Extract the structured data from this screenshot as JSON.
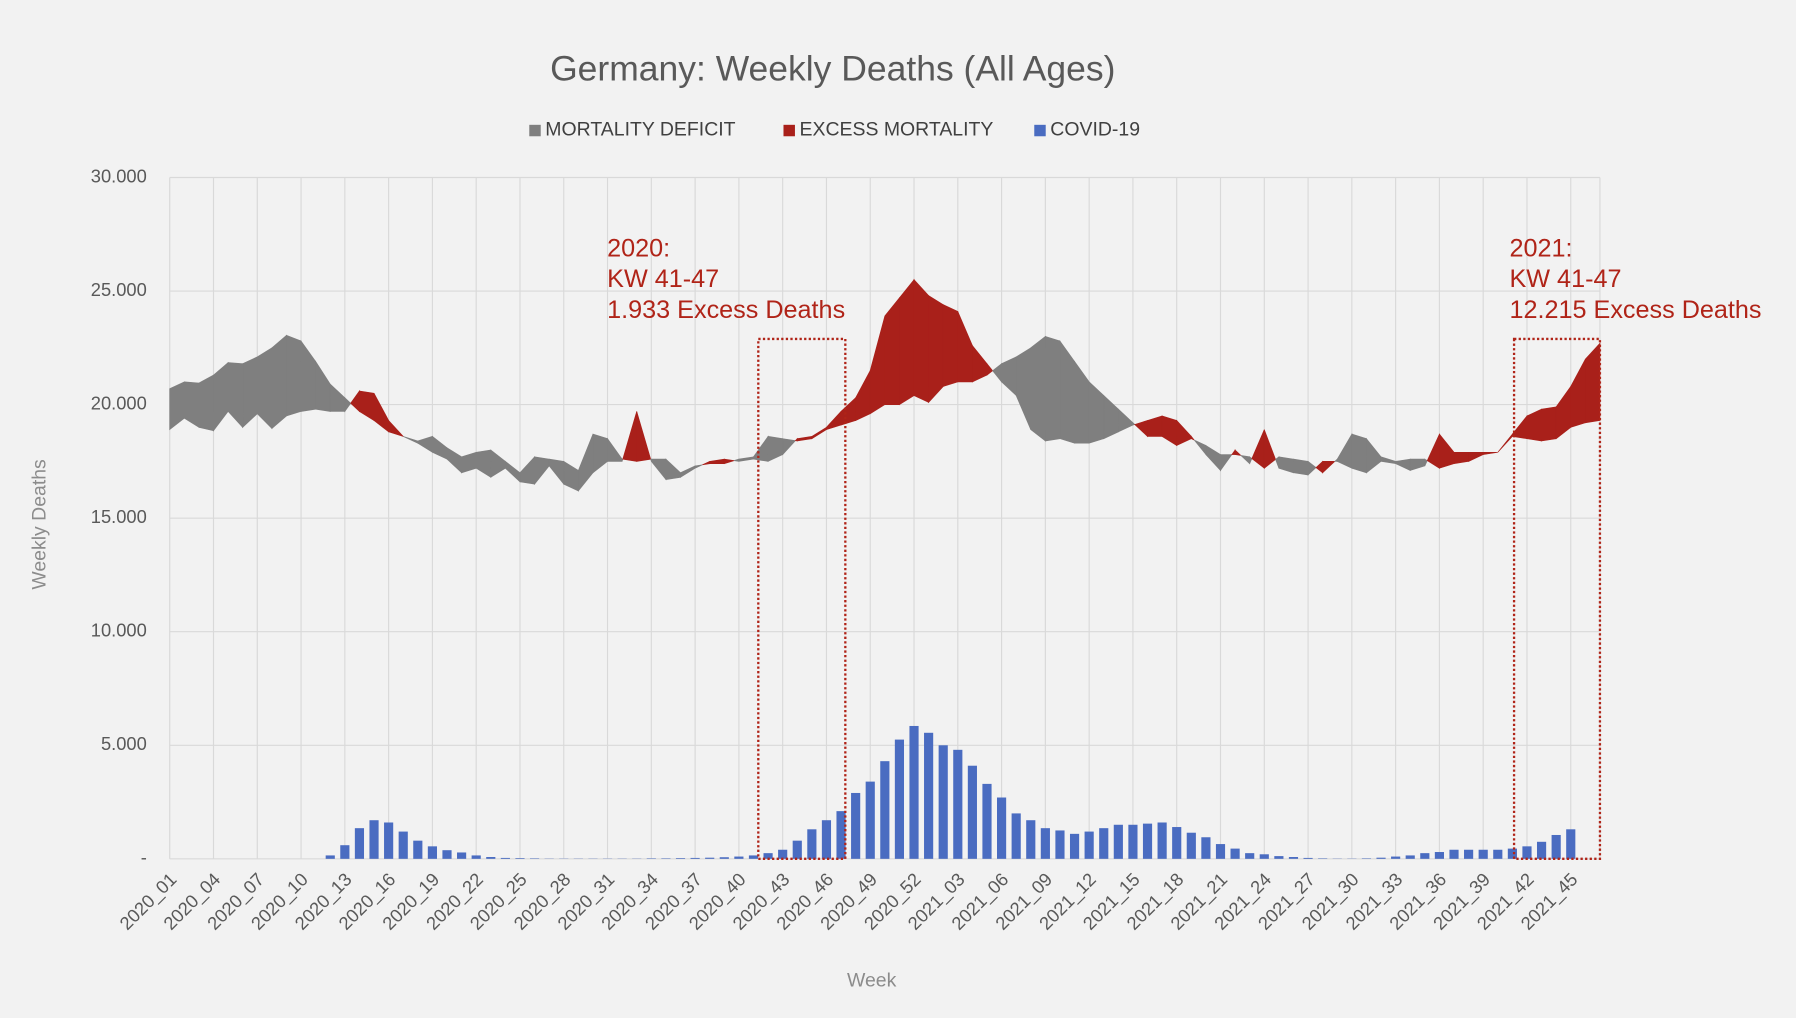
{
  "chart_data": {
    "type": "band-bar",
    "title": "Germany: Weekly Deaths (All Ages)",
    "x_label": "Week",
    "y_label": "Weekly Deaths",
    "categories": [
      "2020_01",
      null,
      null,
      "2020_04",
      null,
      null,
      "2020_07",
      null,
      null,
      "2020_10",
      null,
      null,
      "2020_13",
      null,
      null,
      "2020_16",
      null,
      null,
      "2020_19",
      null,
      null,
      "2020_22",
      null,
      null,
      "2020_25",
      null,
      null,
      "2020_28",
      null,
      null,
      "2020_31",
      null,
      null,
      "2020_34",
      null,
      null,
      "2020_37",
      null,
      null,
      "2020_40",
      null,
      null,
      "2020_43",
      null,
      null,
      "2020_46",
      null,
      null,
      "2020_49",
      null,
      null,
      "2020_52",
      null,
      null,
      "2021_03",
      null,
      null,
      "2021_06",
      null,
      null,
      "2021_09",
      null,
      null,
      "2021_12",
      null,
      null,
      "2021_15",
      null,
      null,
      "2021_18",
      null,
      null,
      "2021_21",
      null,
      null,
      "2021_24",
      null,
      null,
      "2021_27",
      null,
      null,
      "2021_30",
      null,
      null,
      "2021_33",
      null,
      null,
      "2021_36",
      null,
      null,
      "2021_39",
      null,
      null,
      "2021_42",
      null,
      null,
      "2021_45",
      null,
      null
    ],
    "baseline": [
      20700,
      21000,
      20950,
      21300,
      21850,
      21800,
      22100,
      22500,
      23050,
      22800,
      21900,
      20900,
      20300,
      19700,
      19300,
      18800,
      18600,
      18400,
      18600,
      18100,
      17700,
      17900,
      18000,
      17500,
      17000,
      17700,
      17600,
      17500,
      17100,
      18700,
      18500,
      17600,
      17500,
      17600,
      17600,
      17000,
      17300,
      17400,
      17400,
      17600,
      17700,
      18600,
      18500,
      18400,
      18500,
      18900,
      19100,
      19300,
      19600,
      20000,
      20000,
      20400,
      20100,
      20800,
      21000,
      21000,
      21300,
      21800,
      22100,
      22500,
      23000,
      22800,
      21900,
      21000,
      20400,
      19800,
      19200,
      18600,
      18600,
      18200,
      18500,
      18200,
      17800,
      17800,
      17700,
      17200,
      17700,
      17600,
      17500,
      17000,
      17600,
      18700,
      18500,
      17700,
      17500,
      17600,
      17600,
      17200,
      17400,
      17500,
      17800,
      17900,
      18600,
      18500,
      18400,
      18500,
      19000,
      19200,
      19300
    ],
    "deaths": [
      18900,
      19400,
      19000,
      18850,
      19700,
      19000,
      19600,
      18950,
      19500,
      19700,
      19800,
      19700,
      19700,
      20600,
      20500,
      19300,
      18600,
      18300,
      17900,
      17600,
      17000,
      17200,
      16800,
      17200,
      16600,
      16500,
      17300,
      16500,
      16200,
      17000,
      17500,
      17500,
      19700,
      17500,
      16700,
      16800,
      17200,
      17500,
      17600,
      17500,
      17600,
      17500,
      17800,
      18500,
      18600,
      19000,
      19700,
      20300,
      21500,
      23900,
      24700,
      25500,
      24800,
      24400,
      24100,
      22600,
      21800,
      21000,
      20400,
      18900,
      18400,
      18500,
      18300,
      18300,
      18500,
      18800,
      19100,
      19300,
      19500,
      19300,
      18600,
      17800,
      17100,
      18000,
      17400,
      18900,
      17200,
      17000,
      16900,
      17500,
      17500,
      17200,
      17000,
      17500,
      17400,
      17100,
      17300,
      18700,
      17900,
      17900,
      17900,
      17900,
      18700,
      19500,
      19800,
      19900,
      20800,
      22000,
      22700
    ],
    "series": [
      {
        "name": "MORTALITY DEFICIT",
        "color": "#7f7f7f"
      },
      {
        "name": "EXCESS MORTALITY",
        "color": "#a9201a"
      },
      {
        "name": "COVID-19",
        "color": "#4a6cc1",
        "values": [
          0,
          0,
          0,
          0,
          0,
          0,
          0,
          0,
          0,
          0,
          0,
          150,
          600,
          1350,
          1700,
          1600,
          1200,
          800,
          550,
          380,
          280,
          150,
          80,
          40,
          30,
          20,
          10,
          10,
          10,
          10,
          10,
          10,
          10,
          20,
          20,
          30,
          40,
          50,
          70,
          100,
          150,
          250,
          400,
          800,
          1300,
          1700,
          2100,
          2900,
          3400,
          4300,
          5250,
          5850,
          5550,
          5000,
          4800,
          4100,
          3300,
          2700,
          2000,
          1700,
          1350,
          1250,
          1100,
          1200,
          1350,
          1500,
          1500,
          1550,
          1600,
          1400,
          1150,
          950,
          650,
          450,
          250,
          200,
          120,
          80,
          40,
          20,
          10,
          10,
          20,
          50,
          100,
          150,
          250,
          300,
          400,
          400,
          400,
          400,
          450,
          550,
          750,
          1050,
          1300,
          null,
          null
        ]
      }
    ],
    "ylim": [
      0,
      30000
    ],
    "yticks": [
      {
        "value": 0,
        "label": "-"
      },
      {
        "value": 5000,
        "label": "5.000"
      },
      {
        "value": 10000,
        "label": "10.000"
      },
      {
        "value": 15000,
        "label": "15.000"
      },
      {
        "value": 20000,
        "label": "20.000"
      },
      {
        "value": 25000,
        "label": "25.000"
      },
      {
        "value": 30000,
        "label": "30.000"
      }
    ],
    "grid": true,
    "legend": "top",
    "annotations": [
      {
        "lines": [
          "2020:",
          "KW 41-47",
          "1.933 Excess Deaths"
        ],
        "color": "#b02418"
      },
      {
        "lines": [
          "2021:",
          "KW 41-47",
          "12.215 Excess Deaths"
        ],
        "color": "#b02418"
      }
    ]
  }
}
